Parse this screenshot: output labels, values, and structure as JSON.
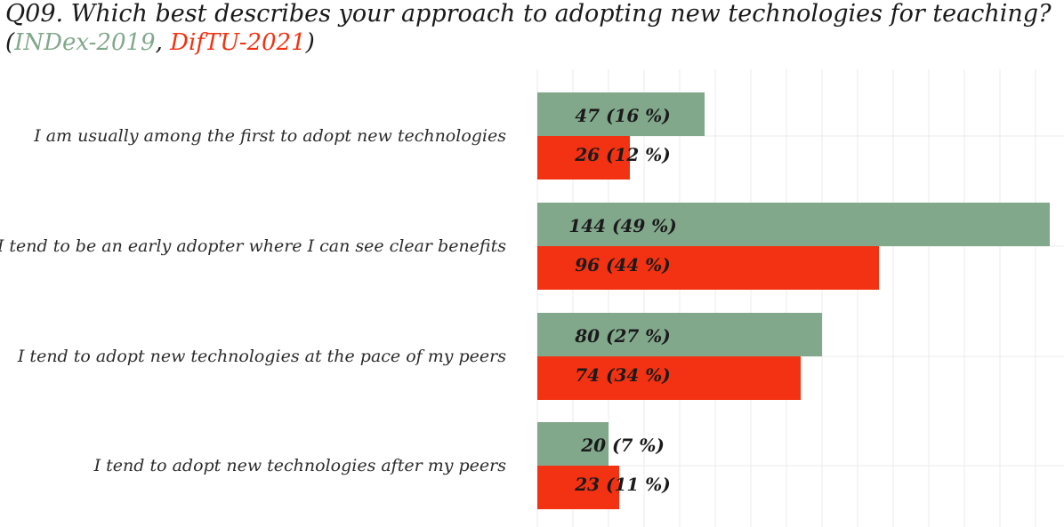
{
  "title": "Q09. Which best describes your approach to adopting new technologies for teaching?",
  "subtitle": {
    "open": "(",
    "sep": ", ",
    "close": ")"
  },
  "colors": {
    "series_2019": "#82a88c",
    "series_2021": "#f23212"
  },
  "chart_data": {
    "type": "bar",
    "orientation": "horizontal",
    "categories": [
      "I am usually among the first to adopt new technologies",
      "I tend to be an early adopter where I can see clear benefits",
      "I tend to adopt new technologies at the pace of my peers",
      "I tend to adopt new technologies after my peers"
    ],
    "series": [
      {
        "name": "INDex-2019",
        "values": [
          47,
          144,
          80,
          20
        ],
        "percents": [
          16,
          49,
          27,
          7
        ]
      },
      {
        "name": "DifTU-2021",
        "values": [
          26,
          96,
          74,
          23
        ],
        "percents": [
          12,
          44,
          34,
          11
        ]
      }
    ],
    "xlim": [
      0,
      145
    ],
    "grid": true,
    "legend": "in subtitle"
  }
}
